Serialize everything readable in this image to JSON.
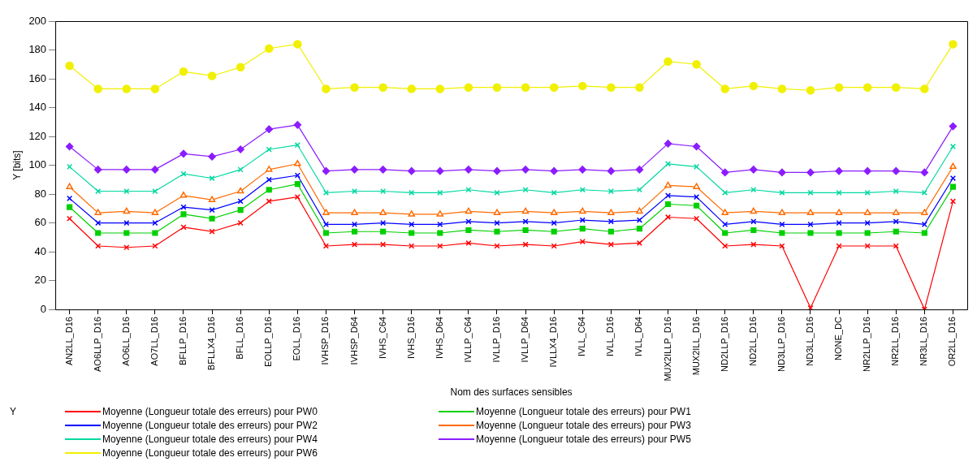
{
  "chart_data": {
    "type": "line",
    "xlabel": "Nom des surfaces sensibles",
    "ylabel": "Y [bits]",
    "legend_title": "Y",
    "legend": "bottom",
    "grid": false,
    "categories": [
      "AN2LL_D16",
      "AO6LLP_D16",
      "AO6LL_D16",
      "AO7LL_D16",
      "BFLLP_D16",
      "BFLLX4_D16",
      "BFLL_D16",
      "EOLLP_D16",
      "EOLL_D16",
      "IVHSP_D16",
      "IVHSP_D64",
      "IVHS_C64",
      "IVHS_D16",
      "IVHS_D64",
      "IVLLP_C64",
      "IVLLP_D16",
      "IVLLP_D64",
      "IVLLX4_D16",
      "IVLL_C64",
      "IVLL_D16",
      "IVLL_D64",
      "MUX2ILLP_D16",
      "MUX2ILL_D16",
      "ND2LLP_D16",
      "ND2LL_D16",
      "ND3LLP_D16",
      "ND3LL_D16",
      "NONE_DC",
      "NR2LLP_D16",
      "NR2LL_D16",
      "NR3LL_D16",
      "OR2LL_D16"
    ],
    "ylim": [
      0,
      200
    ],
    "yticks": [
      0,
      20,
      40,
      60,
      80,
      100,
      120,
      140,
      160,
      180,
      200
    ],
    "series": [
      {
        "name": "Moyenne (Longueur totale des erreurs) pour PW0",
        "color": "#ff0000",
        "marker": "cross",
        "values": [
          63,
          44,
          43,
          44,
          57,
          54,
          60,
          75,
          78,
          44,
          45,
          45,
          44,
          44,
          46,
          44,
          45,
          44,
          47,
          45,
          46,
          64,
          63,
          44,
          45,
          44,
          1,
          44,
          44,
          44,
          0,
          75
        ]
      },
      {
        "name": "Moyenne (Longueur totale des erreurs) pour PW1",
        "color": "#00d000",
        "marker": "square",
        "values": [
          71,
          53,
          53,
          53,
          66,
          63,
          69,
          83,
          87,
          53,
          54,
          54,
          53,
          53,
          55,
          54,
          55,
          54,
          56,
          54,
          56,
          73,
          72,
          53,
          55,
          53,
          53,
          53,
          53,
          54,
          53,
          85
        ]
      },
      {
        "name": "Moyenne (Longueur totale des erreurs) pour PW2",
        "color": "#0000ff",
        "marker": "cross",
        "values": [
          77,
          60,
          60,
          60,
          71,
          69,
          75,
          90,
          93,
          59,
          59,
          60,
          59,
          59,
          61,
          60,
          61,
          60,
          62,
          61,
          62,
          79,
          78,
          59,
          61,
          59,
          59,
          60,
          60,
          61,
          59,
          91
        ]
      },
      {
        "name": "Moyenne (Longueur totale des erreurs) pour PW3",
        "color": "#ff6a00",
        "marker": "triangle",
        "values": [
          85,
          67,
          68,
          67,
          79,
          76,
          82,
          97,
          101,
          67,
          67,
          67,
          66,
          66,
          68,
          67,
          68,
          67,
          68,
          67,
          68,
          86,
          85,
          67,
          68,
          67,
          67,
          67,
          67,
          67,
          67,
          99
        ]
      },
      {
        "name": "Moyenne (Longueur totale des erreurs) pour PW4",
        "color": "#00d8a0",
        "marker": "cross",
        "values": [
          99,
          82,
          82,
          82,
          94,
          91,
          97,
          111,
          114,
          81,
          82,
          82,
          81,
          81,
          83,
          81,
          83,
          81,
          83,
          82,
          83,
          101,
          99,
          81,
          83,
          81,
          81,
          81,
          81,
          82,
          81,
          113
        ]
      },
      {
        "name": "Moyenne (Longueur totale des erreurs) pour PW5",
        "color": "#8c1cff",
        "marker": "diamond",
        "values": [
          113,
          97,
          97,
          97,
          108,
          106,
          111,
          125,
          128,
          96,
          97,
          97,
          96,
          96,
          97,
          96,
          97,
          96,
          97,
          96,
          97,
          115,
          113,
          95,
          97,
          95,
          95,
          96,
          96,
          96,
          95,
          127
        ]
      },
      {
        "name": "Moyenne (Longueur totale des erreurs) pour PW6",
        "color": "#f0f000",
        "marker": "circle",
        "values": [
          169,
          153,
          153,
          153,
          165,
          162,
          168,
          181,
          184,
          153,
          154,
          154,
          153,
          153,
          154,
          154,
          154,
          154,
          155,
          154,
          154,
          172,
          170,
          153,
          155,
          153,
          152,
          154,
          154,
          154,
          153,
          184
        ]
      }
    ]
  }
}
